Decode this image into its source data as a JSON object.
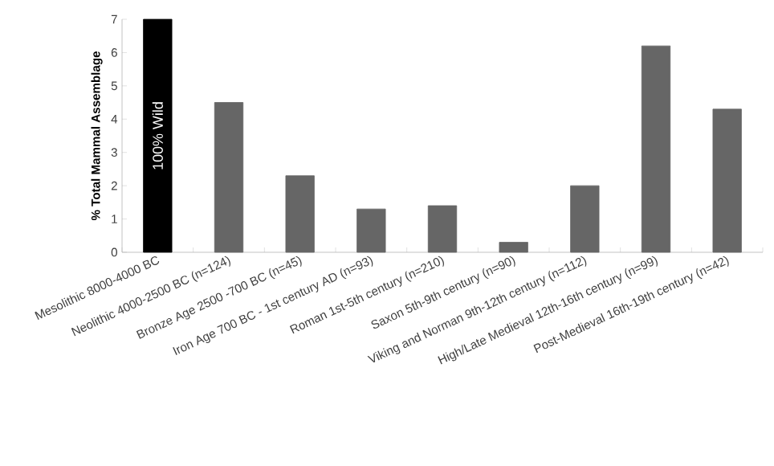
{
  "chart_data": {
    "type": "bar",
    "ylabel": "**% Total Mammal Assemblage**",
    "categories": [
      "Mesolithic 8000-4000 BC",
      "Neolithic 4000-2500 BC (n=124)",
      "Bronze Age 2500 -700 BC (n=45)",
      "Iron Age 700 BC - 1st century AD (n=93)",
      "Roman 1st-5th century (n=210)",
      "Saxon 5th-9th century (n=90)",
      "Viking and Norman 9th-12th century (n=112)",
      "High/Late Medieval 12th-16th century (n=99)",
      "Post-Medieval 16th-19th century (n=42)"
    ],
    "values": [
      7,
      4.5,
      2.3,
      1.3,
      1.4,
      0.3,
      2.0,
      6.2,
      4.3
    ],
    "colors": [
      "#000000",
      "#666666",
      "#666666",
      "#666666",
      "#666666",
      "#666666",
      "#666666",
      "#666666",
      "#666666"
    ],
    "ylim": [
      0,
      7
    ],
    "yticks": [
      0,
      1,
      2,
      3,
      4,
      5,
      6,
      7
    ],
    "annotations": [
      "100% Wild"
    ],
    "grid": false
  }
}
